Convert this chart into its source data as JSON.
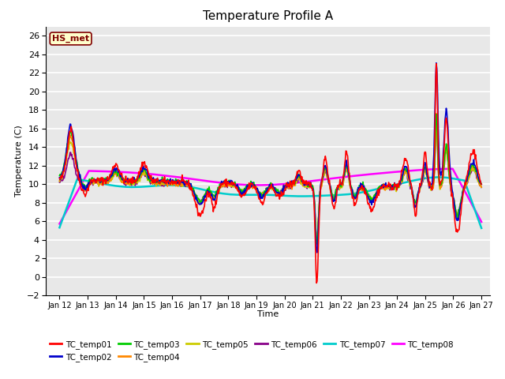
{
  "title": "Temperature Profile A",
  "xlabel": "Time",
  "ylabel": "Temperature (C)",
  "xlim_days": [
    11.5,
    27.3
  ],
  "ylim": [
    -2,
    27
  ],
  "yticks": [
    -2,
    0,
    2,
    4,
    6,
    8,
    10,
    12,
    14,
    16,
    18,
    20,
    22,
    24,
    26
  ],
  "xtick_labels": [
    "Jan 12",
    "Jan 13",
    "Jan 14",
    "Jan 15",
    "Jan 16",
    "Jan 17",
    "Jan 18",
    "Jan 19",
    "Jan 20",
    "Jan 21",
    "Jan 22",
    "Jan 23",
    "Jan 24",
    "Jan 25",
    "Jan 26",
    "Jan 27"
  ],
  "xtick_positions": [
    12,
    13,
    14,
    15,
    16,
    17,
    18,
    19,
    20,
    21,
    22,
    23,
    24,
    25,
    26,
    27
  ],
  "bg_color": "#e8e8e8",
  "grid_color": "#ffffff",
  "annotation_text": "HS_met",
  "annotation_bg": "#ffffcc",
  "annotation_border": "#800000",
  "annotation_text_color": "#800000",
  "series_colors": {
    "TC_temp01": "#ff0000",
    "TC_temp02": "#0000cc",
    "TC_temp03": "#00cc00",
    "TC_temp04": "#ff8800",
    "TC_temp05": "#cccc00",
    "TC_temp06": "#880088",
    "TC_temp07": "#00cccc",
    "TC_temp08": "#ff00ff"
  },
  "series_linewidths": {
    "TC_temp01": 1.2,
    "TC_temp02": 1.2,
    "TC_temp03": 1.2,
    "TC_temp04": 1.2,
    "TC_temp05": 1.2,
    "TC_temp06": 1.2,
    "TC_temp07": 1.8,
    "TC_temp08": 1.8
  }
}
